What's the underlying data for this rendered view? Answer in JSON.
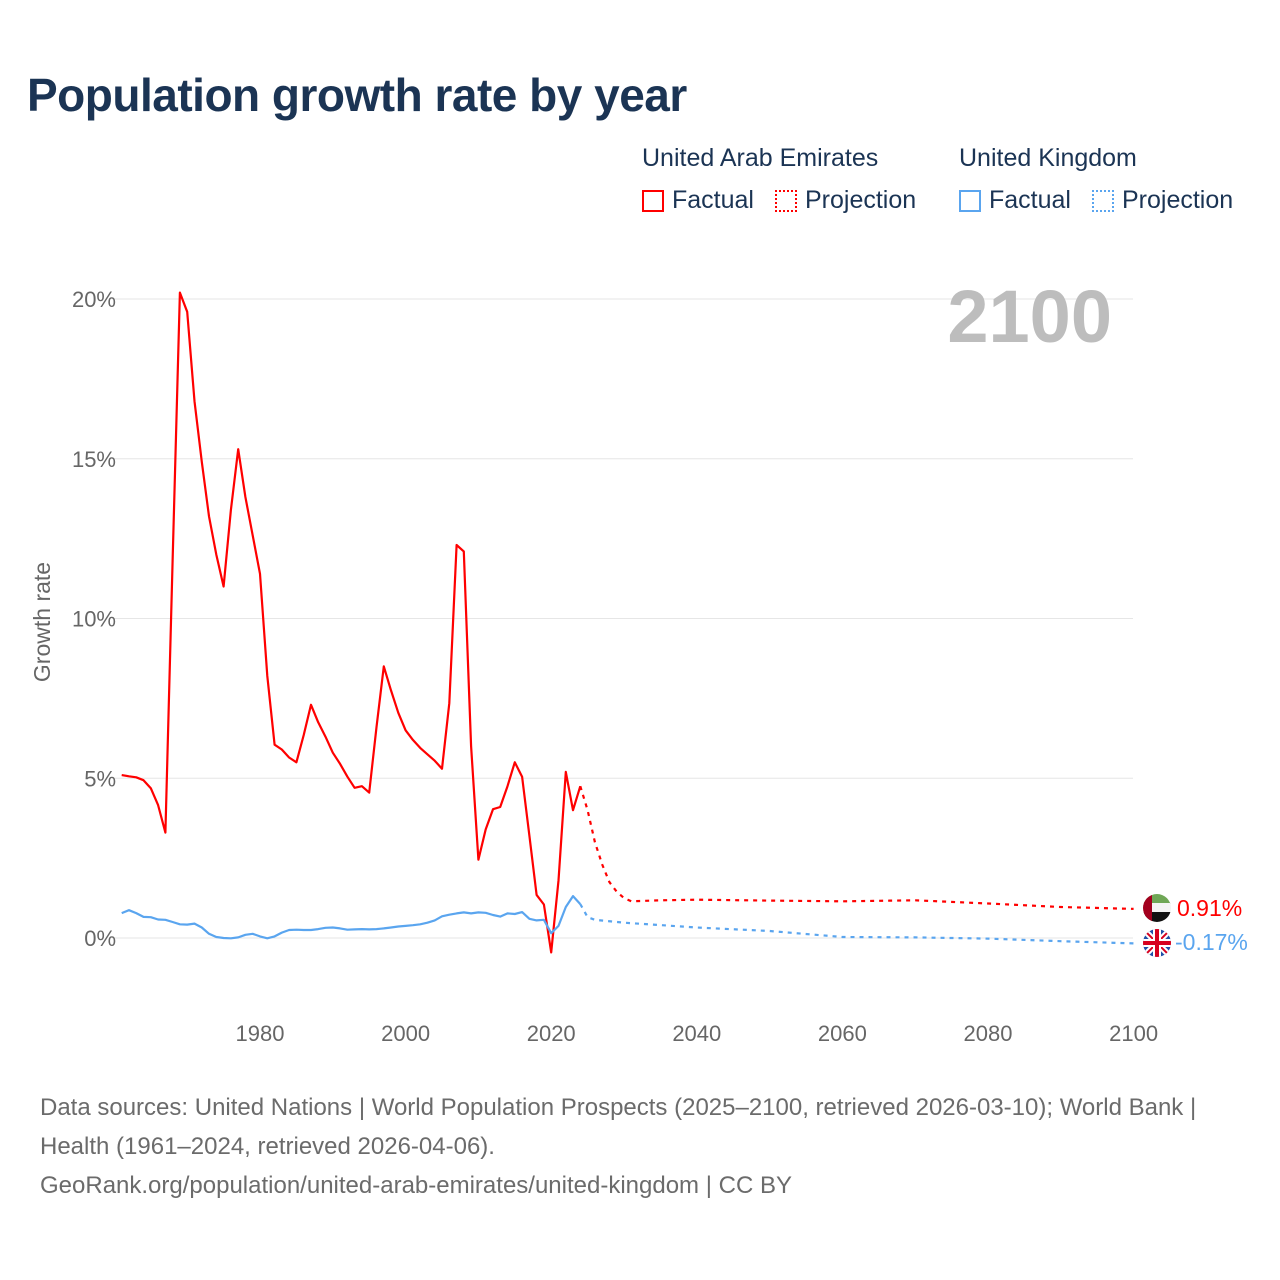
{
  "title": "Population growth rate by year",
  "legend": {
    "groups": [
      {
        "name": "United Arab Emirates",
        "factual": "Factual",
        "projection": "Projection",
        "color": "#ff0000"
      },
      {
        "name": "United Kingdom",
        "factual": "Factual",
        "projection": "Projection",
        "color": "#5aa5ef"
      }
    ]
  },
  "year_label": "2100",
  "end_labels": {
    "uae": "0.91%",
    "uk": "-0.17%"
  },
  "sources": {
    "line1": "Data sources: United Nations | World Population Prospects (2025–2100, retrieved 2026-03-10); World Bank | Health (1961–2024, retrieved 2026-04-06).",
    "line2": "GeoRank.org/population/united-arab-emirates/united-kingdom | CC BY"
  },
  "chart_data": {
    "type": "line",
    "title": "Population growth rate by year",
    "xlabel": "",
    "ylabel": "Growth rate",
    "xlim": [
      1961,
      2100
    ],
    "ylim": [
      -1.5,
      21
    ],
    "x_ticks": [
      1980,
      2000,
      2020,
      2040,
      2060,
      2080,
      2100
    ],
    "x_tick_labels": [
      "1980",
      "2000",
      "2020",
      "2040",
      "2060",
      "2080",
      "2100"
    ],
    "y_ticks": [
      0,
      5,
      10,
      15,
      20
    ],
    "y_tick_labels": [
      "0%",
      "5%",
      "10%",
      "15%",
      "20%"
    ],
    "grid": true,
    "legend_placement": "top-right",
    "series": [
      {
        "name": "United Arab Emirates - Factual",
        "color": "#ff0000",
        "style": "solid",
        "x": [
          1961,
          1962,
          1963,
          1964,
          1965,
          1966,
          1967,
          1968,
          1969,
          1970,
          1971,
          1972,
          1973,
          1974,
          1975,
          1976,
          1977,
          1978,
          1979,
          1980,
          1981,
          1982,
          1983,
          1984,
          1985,
          1986,
          1987,
          1988,
          1989,
          1990,
          1991,
          1992,
          1993,
          1994,
          1995,
          1996,
          1997,
          1998,
          1999,
          2000,
          2001,
          2002,
          2003,
          2004,
          2005,
          2006,
          2007,
          2008,
          2009,
          2010,
          2011,
          2012,
          2013,
          2014,
          2015,
          2016,
          2017,
          2018,
          2019,
          2020,
          2021,
          2022,
          2023,
          2024
        ],
        "y": [
          5.1,
          5.06,
          5.03,
          4.94,
          4.69,
          4.16,
          3.3,
          11.8,
          20.2,
          19.6,
          16.8,
          14.9,
          13.2,
          12.0,
          11.0,
          13.4,
          15.3,
          13.8,
          12.6,
          11.4,
          8.2,
          6.05,
          5.9,
          5.65,
          5.5,
          6.35,
          7.3,
          6.75,
          6.3,
          5.8,
          5.45,
          5.05,
          4.7,
          4.75,
          4.55,
          6.6,
          8.5,
          7.75,
          7.05,
          6.5,
          6.2,
          5.95,
          5.75,
          5.55,
          5.3,
          7.35,
          12.3,
          12.1,
          6.0,
          2.45,
          3.4,
          4.03,
          4.1,
          4.75,
          5.5,
          5.05,
          3.2,
          1.35,
          1.05,
          -0.45,
          1.8,
          5.2,
          4.0,
          4.75
        ]
      },
      {
        "name": "United Arab Emirates - Projection",
        "color": "#ff0000",
        "style": "dotted",
        "x": [
          2024,
          2025,
          2026,
          2027,
          2028,
          2029,
          2030,
          2031,
          2035,
          2040,
          2050,
          2060,
          2070,
          2080,
          2090,
          2100
        ],
        "y": [
          4.75,
          4.0,
          3.0,
          2.3,
          1.75,
          1.45,
          1.25,
          1.15,
          1.18,
          1.2,
          1.17,
          1.15,
          1.18,
          1.08,
          0.97,
          0.91
        ]
      },
      {
        "name": "United Kingdom - Factual",
        "color": "#5aa5ef",
        "style": "solid",
        "x": [
          1961,
          1962,
          1963,
          1964,
          1965,
          1966,
          1967,
          1968,
          1969,
          1970,
          1971,
          1972,
          1973,
          1974,
          1975,
          1976,
          1977,
          1978,
          1979,
          1980,
          1981,
          1982,
          1983,
          1984,
          1985,
          1986,
          1987,
          1988,
          1989,
          1990,
          1991,
          1992,
          1993,
          1994,
          1995,
          1996,
          1997,
          1998,
          1999,
          2000,
          2001,
          2002,
          2003,
          2004,
          2005,
          2006,
          2007,
          2008,
          2009,
          2010,
          2011,
          2012,
          2013,
          2014,
          2015,
          2016,
          2017,
          2018,
          2019,
          2020,
          2021,
          2022,
          2023,
          2024
        ],
        "y": [
          0.78,
          0.87,
          0.78,
          0.66,
          0.65,
          0.58,
          0.57,
          0.5,
          0.43,
          0.42,
          0.45,
          0.33,
          0.13,
          0.03,
          0.0,
          -0.01,
          0.02,
          0.1,
          0.13,
          0.05,
          -0.01,
          0.05,
          0.17,
          0.25,
          0.26,
          0.25,
          0.25,
          0.28,
          0.32,
          0.33,
          0.3,
          0.26,
          0.27,
          0.28,
          0.27,
          0.28,
          0.3,
          0.33,
          0.36,
          0.38,
          0.4,
          0.43,
          0.48,
          0.55,
          0.68,
          0.73,
          0.77,
          0.8,
          0.77,
          0.8,
          0.79,
          0.72,
          0.67,
          0.77,
          0.75,
          0.81,
          0.6,
          0.55,
          0.57,
          0.15,
          0.38,
          0.97,
          1.31,
          1.06
        ]
      },
      {
        "name": "United Kingdom - Projection",
        "color": "#5aa5ef",
        "style": "dotted",
        "x": [
          2024,
          2025,
          2026,
          2030,
          2040,
          2050,
          2060,
          2070,
          2080,
          2090,
          2100
        ],
        "y": [
          1.06,
          0.65,
          0.57,
          0.48,
          0.33,
          0.22,
          0.03,
          0.02,
          -0.02,
          -0.1,
          -0.17
        ]
      }
    ]
  }
}
